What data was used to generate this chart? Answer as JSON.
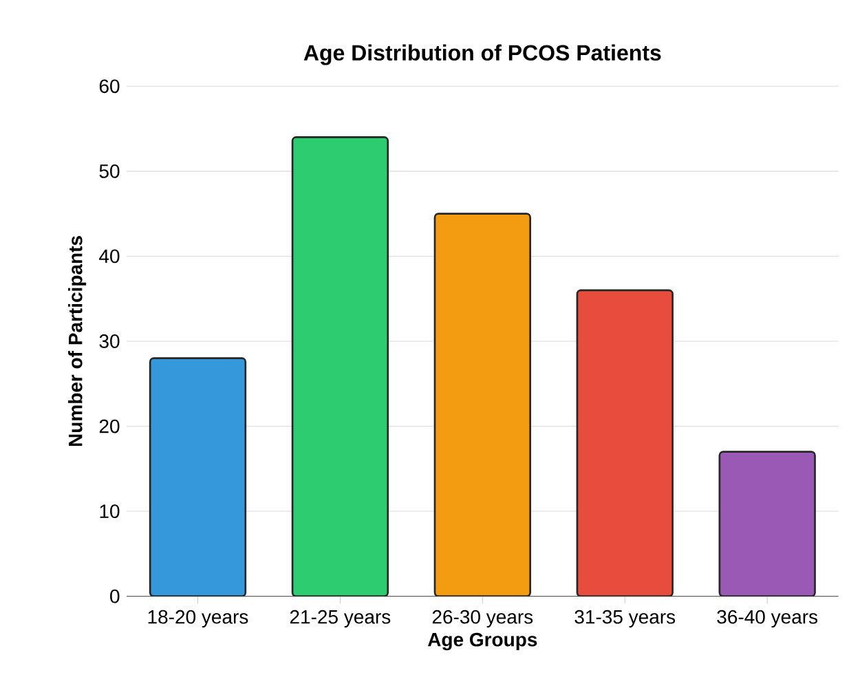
{
  "chart_data": {
    "type": "bar",
    "title": "Age Distribution of PCOS Patients",
    "xlabel": "Age Groups",
    "ylabel": "Number of Participants",
    "categories": [
      "18-20 years",
      "21-25 years",
      "26-30 years",
      "31-35 years",
      "36-40 years"
    ],
    "values": [
      28,
      54,
      45,
      36,
      17
    ],
    "colors": [
      "#3498db",
      "#2ecc71",
      "#f39c12",
      "#e74c3c",
      "#9b59b6"
    ],
    "ylim": [
      0,
      60
    ],
    "yticks": [
      0,
      10,
      20,
      30,
      40,
      50,
      60
    ],
    "grid": "y"
  }
}
